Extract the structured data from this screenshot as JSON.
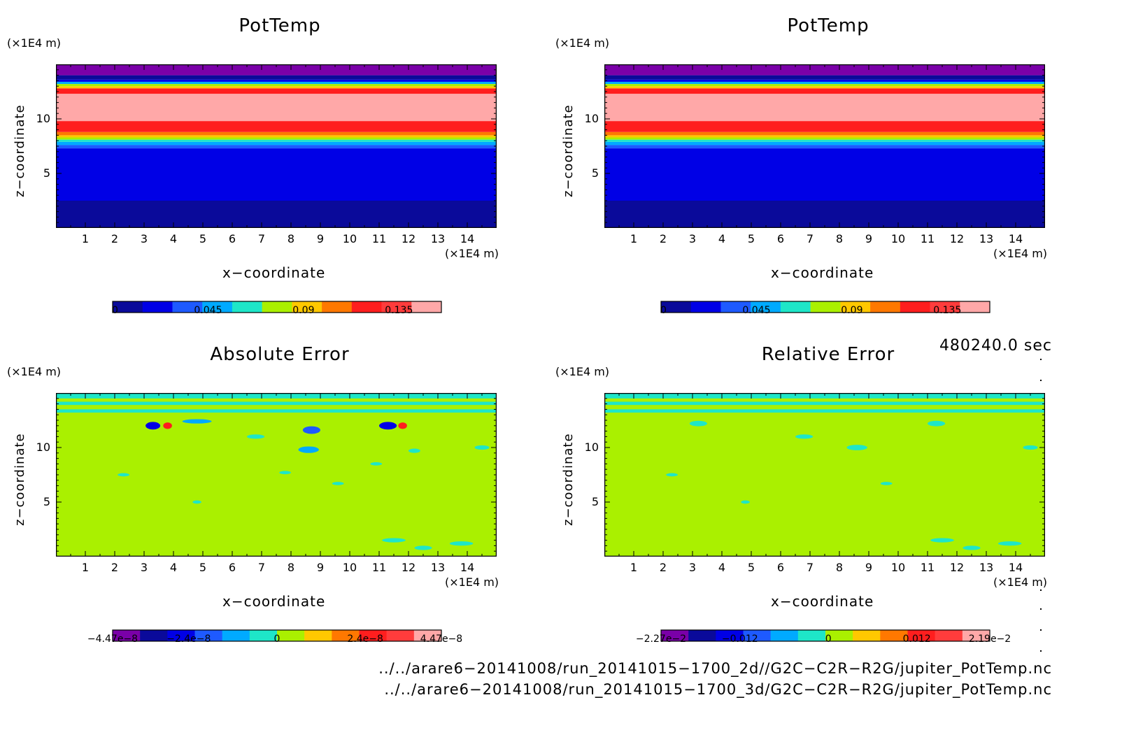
{
  "axes": {
    "xlabel": "x−coordinate",
    "ylabel": "z−coordinate",
    "x_unit": "(×1E4 m)",
    "z_unit": "(×1E4 m)",
    "x_ticks": [
      "1",
      "2",
      "3",
      "4",
      "5",
      "6",
      "7",
      "8",
      "9",
      "10",
      "11",
      "12",
      "13",
      "14"
    ],
    "z_ticks": [
      "5",
      "10"
    ]
  },
  "time_label": "480240.0 sec",
  "files": [
    "../../arare6−20141008/run_20141015−1700_2d//G2C−C2R−R2G/jupiter_PotTemp.nc",
    "../../arare6−20141008/run_20141015−1700_3d/G2C−C2R−R2G/jupiter_PotTemp.nc"
  ],
  "chart_data": [
    {
      "type": "heatmap",
      "title": "PotTemp",
      "xlim": [
        0,
        15
      ],
      "ylim": [
        0,
        15
      ],
      "colorbar": {
        "colors": [
          "#0a0a9a",
          "#0000e6",
          "#1e5aff",
          "#00aaff",
          "#1ee6c8",
          "#aaf000",
          "#ffc800",
          "#ff7800",
          "#ff1e1e",
          "#ff3c3c",
          "#ffa8a8"
        ],
        "tick_labels": [
          "0",
          "0.045",
          "0.09",
          "0.135"
        ],
        "tick_values": [
          0,
          0.045,
          0.09,
          0.135
        ],
        "range": [
          0,
          0.155
        ]
      },
      "bands": [
        {
          "z0": 0,
          "z1": 2.5,
          "level": 0
        },
        {
          "z0": 2.5,
          "z1": 7.3,
          "level": 1
        },
        {
          "z0": 7.3,
          "z1": 7.6,
          "level": 2
        },
        {
          "z0": 7.6,
          "z1": 7.9,
          "level": 3
        },
        {
          "z0": 7.9,
          "z1": 8.1,
          "level": 4
        },
        {
          "z0": 8.1,
          "z1": 8.3,
          "level": 5
        },
        {
          "z0": 8.3,
          "z1": 8.5,
          "level": 6
        },
        {
          "z0": 8.5,
          "z1": 8.8,
          "level": 7
        },
        {
          "z0": 8.8,
          "z1": 9.8,
          "level": 8
        },
        {
          "z0": 9.8,
          "z1": 12.3,
          "level": 10
        },
        {
          "z0": 12.3,
          "z1": 12.8,
          "level": 8
        },
        {
          "z0": 12.8,
          "z1": 13.0,
          "level": 6
        },
        {
          "z0": 13.0,
          "z1": 13.2,
          "level": 5
        },
        {
          "z0": 13.2,
          "z1": 13.4,
          "level": 3
        },
        {
          "z0": 13.4,
          "z1": 13.6,
          "level": 1
        },
        {
          "z0": 13.6,
          "z1": 14.0,
          "level": 0
        },
        {
          "z0": 14.0,
          "z1": 15.0,
          "level": -1
        }
      ]
    },
    {
      "type": "heatmap",
      "title": "PotTemp",
      "xlim": [
        0,
        15
      ],
      "ylim": [
        0,
        15
      ],
      "colorbar": {
        "colors": [
          "#0a0a9a",
          "#0000e6",
          "#1e5aff",
          "#00aaff",
          "#1ee6c8",
          "#aaf000",
          "#ffc800",
          "#ff7800",
          "#ff1e1e",
          "#ff3c3c",
          "#ffa8a8"
        ],
        "tick_labels": [
          "0",
          "0.045",
          "0.09",
          "0.135"
        ],
        "tick_values": [
          0,
          0.045,
          0.09,
          0.135
        ],
        "range": [
          0,
          0.155
        ]
      },
      "bands": [
        {
          "z0": 0,
          "z1": 2.5,
          "level": 0
        },
        {
          "z0": 2.5,
          "z1": 7.3,
          "level": 1
        },
        {
          "z0": 7.3,
          "z1": 7.6,
          "level": 2
        },
        {
          "z0": 7.6,
          "z1": 7.9,
          "level": 3
        },
        {
          "z0": 7.9,
          "z1": 8.1,
          "level": 4
        },
        {
          "z0": 8.1,
          "z1": 8.3,
          "level": 5
        },
        {
          "z0": 8.3,
          "z1": 8.5,
          "level": 6
        },
        {
          "z0": 8.5,
          "z1": 8.8,
          "level": 7
        },
        {
          "z0": 8.8,
          "z1": 9.8,
          "level": 8
        },
        {
          "z0": 9.8,
          "z1": 12.3,
          "level": 10
        },
        {
          "z0": 12.3,
          "z1": 12.8,
          "level": 8
        },
        {
          "z0": 12.8,
          "z1": 13.0,
          "level": 6
        },
        {
          "z0": 13.0,
          "z1": 13.2,
          "level": 5
        },
        {
          "z0": 13.2,
          "z1": 13.4,
          "level": 3
        },
        {
          "z0": 13.4,
          "z1": 13.6,
          "level": 1
        },
        {
          "z0": 13.6,
          "z1": 14.0,
          "level": 0
        },
        {
          "z0": 14.0,
          "z1": 15.0,
          "level": -1
        }
      ]
    },
    {
      "type": "heatmap",
      "title": "Absolute Error",
      "xlim": [
        0,
        15
      ],
      "ylim": [
        0,
        15
      ],
      "colorbar": {
        "colors": [
          "#7a00a8",
          "#0a0a9a",
          "#0000e6",
          "#1e5aff",
          "#00aaff",
          "#1ee6c8",
          "#aaf000",
          "#ffc800",
          "#ff7800",
          "#ff1e1e",
          "#ff3c3c",
          "#ffa8a8"
        ],
        "tick_labels": [
          "−4.47e−8",
          "−2.4e−8",
          "0",
          "2.4e−8",
          "4.47e−8"
        ],
        "tick_values": [
          -4.47e-08,
          -2.4e-08,
          0,
          2.4e-08,
          4.47e-08
        ],
        "range": [
          -4.47e-08,
          4.47e-08
        ]
      },
      "background_level": 6,
      "bands": [
        {
          "z0": 13.2,
          "z1": 13.5,
          "level": 5
        },
        {
          "z0": 13.9,
          "z1": 14.2,
          "level": 5
        },
        {
          "z0": 14.5,
          "z1": 15.0,
          "level": 5
        }
      ],
      "blobs": [
        {
          "x": 3.3,
          "z": 12.0,
          "rx": 0.25,
          "rz": 0.35,
          "level": 2
        },
        {
          "x": 3.8,
          "z": 12.0,
          "rx": 0.15,
          "rz": 0.3,
          "level": 9
        },
        {
          "x": 11.3,
          "z": 12.0,
          "rx": 0.3,
          "rz": 0.35,
          "level": 2
        },
        {
          "x": 11.8,
          "z": 12.0,
          "rx": 0.15,
          "rz": 0.3,
          "level": 9
        },
        {
          "x": 8.7,
          "z": 11.6,
          "rx": 0.3,
          "rz": 0.35,
          "level": 3
        },
        {
          "x": 8.6,
          "z": 9.8,
          "rx": 0.35,
          "rz": 0.3,
          "level": 4
        },
        {
          "x": 4.8,
          "z": 12.4,
          "rx": 0.5,
          "rz": 0.2,
          "level": 4
        },
        {
          "x": 6.8,
          "z": 11.0,
          "rx": 0.3,
          "rz": 0.2,
          "level": 5
        },
        {
          "x": 14.5,
          "z": 10.0,
          "rx": 0.25,
          "rz": 0.2,
          "level": 5
        },
        {
          "x": 12.2,
          "z": 9.7,
          "rx": 0.2,
          "rz": 0.2,
          "level": 5
        },
        {
          "x": 4.8,
          "z": 5.0,
          "rx": 0.15,
          "rz": 0.15,
          "level": 5
        },
        {
          "x": 9.6,
          "z": 6.7,
          "rx": 0.2,
          "rz": 0.15,
          "level": 5
        },
        {
          "x": 11.5,
          "z": 1.5,
          "rx": 0.4,
          "rz": 0.2,
          "level": 5
        },
        {
          "x": 12.5,
          "z": 0.8,
          "rx": 0.3,
          "rz": 0.2,
          "level": 5
        },
        {
          "x": 13.8,
          "z": 1.2,
          "rx": 0.4,
          "rz": 0.2,
          "level": 5
        },
        {
          "x": 2.3,
          "z": 7.5,
          "rx": 0.2,
          "rz": 0.15,
          "level": 5
        },
        {
          "x": 7.8,
          "z": 7.7,
          "rx": 0.2,
          "rz": 0.15,
          "level": 5
        },
        {
          "x": 10.9,
          "z": 8.5,
          "rx": 0.2,
          "rz": 0.15,
          "level": 5
        }
      ]
    },
    {
      "type": "heatmap",
      "title": "Relative Error",
      "xlim": [
        0,
        15
      ],
      "ylim": [
        0,
        15
      ],
      "colorbar": {
        "colors": [
          "#7a00a8",
          "#0a0a9a",
          "#0000e6",
          "#1e5aff",
          "#00aaff",
          "#1ee6c8",
          "#aaf000",
          "#ffc800",
          "#ff7800",
          "#ff1e1e",
          "#ff3c3c",
          "#ffa8a8"
        ],
        "tick_labels": [
          "−2.27e−2",
          "−0.012",
          "0",
          "0.012",
          "2.19e−2"
        ],
        "tick_values": [
          -0.0227,
          -0.012,
          0,
          0.012,
          0.0219
        ],
        "range": [
          -0.0227,
          0.0219
        ]
      },
      "background_level": 6,
      "bands": [
        {
          "z0": 13.2,
          "z1": 13.5,
          "level": 5
        },
        {
          "z0": 13.9,
          "z1": 14.2,
          "level": 5
        },
        {
          "z0": 14.5,
          "z1": 15.0,
          "level": 5
        }
      ],
      "blobs": [
        {
          "x": 3.2,
          "z": 12.2,
          "rx": 0.3,
          "rz": 0.25,
          "level": 5
        },
        {
          "x": 11.3,
          "z": 12.2,
          "rx": 0.3,
          "rz": 0.25,
          "level": 5
        },
        {
          "x": 8.6,
          "z": 10.0,
          "rx": 0.35,
          "rz": 0.25,
          "level": 5
        },
        {
          "x": 14.5,
          "z": 10.0,
          "rx": 0.25,
          "rz": 0.2,
          "level": 5
        },
        {
          "x": 4.8,
          "z": 5.0,
          "rx": 0.15,
          "rz": 0.15,
          "level": 5
        },
        {
          "x": 11.5,
          "z": 1.5,
          "rx": 0.4,
          "rz": 0.2,
          "level": 5
        },
        {
          "x": 12.5,
          "z": 0.8,
          "rx": 0.3,
          "rz": 0.2,
          "level": 5
        },
        {
          "x": 13.8,
          "z": 1.2,
          "rx": 0.4,
          "rz": 0.2,
          "level": 5
        },
        {
          "x": 6.8,
          "z": 11.0,
          "rx": 0.3,
          "rz": 0.2,
          "level": 5
        },
        {
          "x": 9.6,
          "z": 6.7,
          "rx": 0.2,
          "rz": 0.15,
          "level": 5
        },
        {
          "x": 2.3,
          "z": 7.5,
          "rx": 0.2,
          "rz": 0.15,
          "level": 5
        }
      ]
    }
  ]
}
